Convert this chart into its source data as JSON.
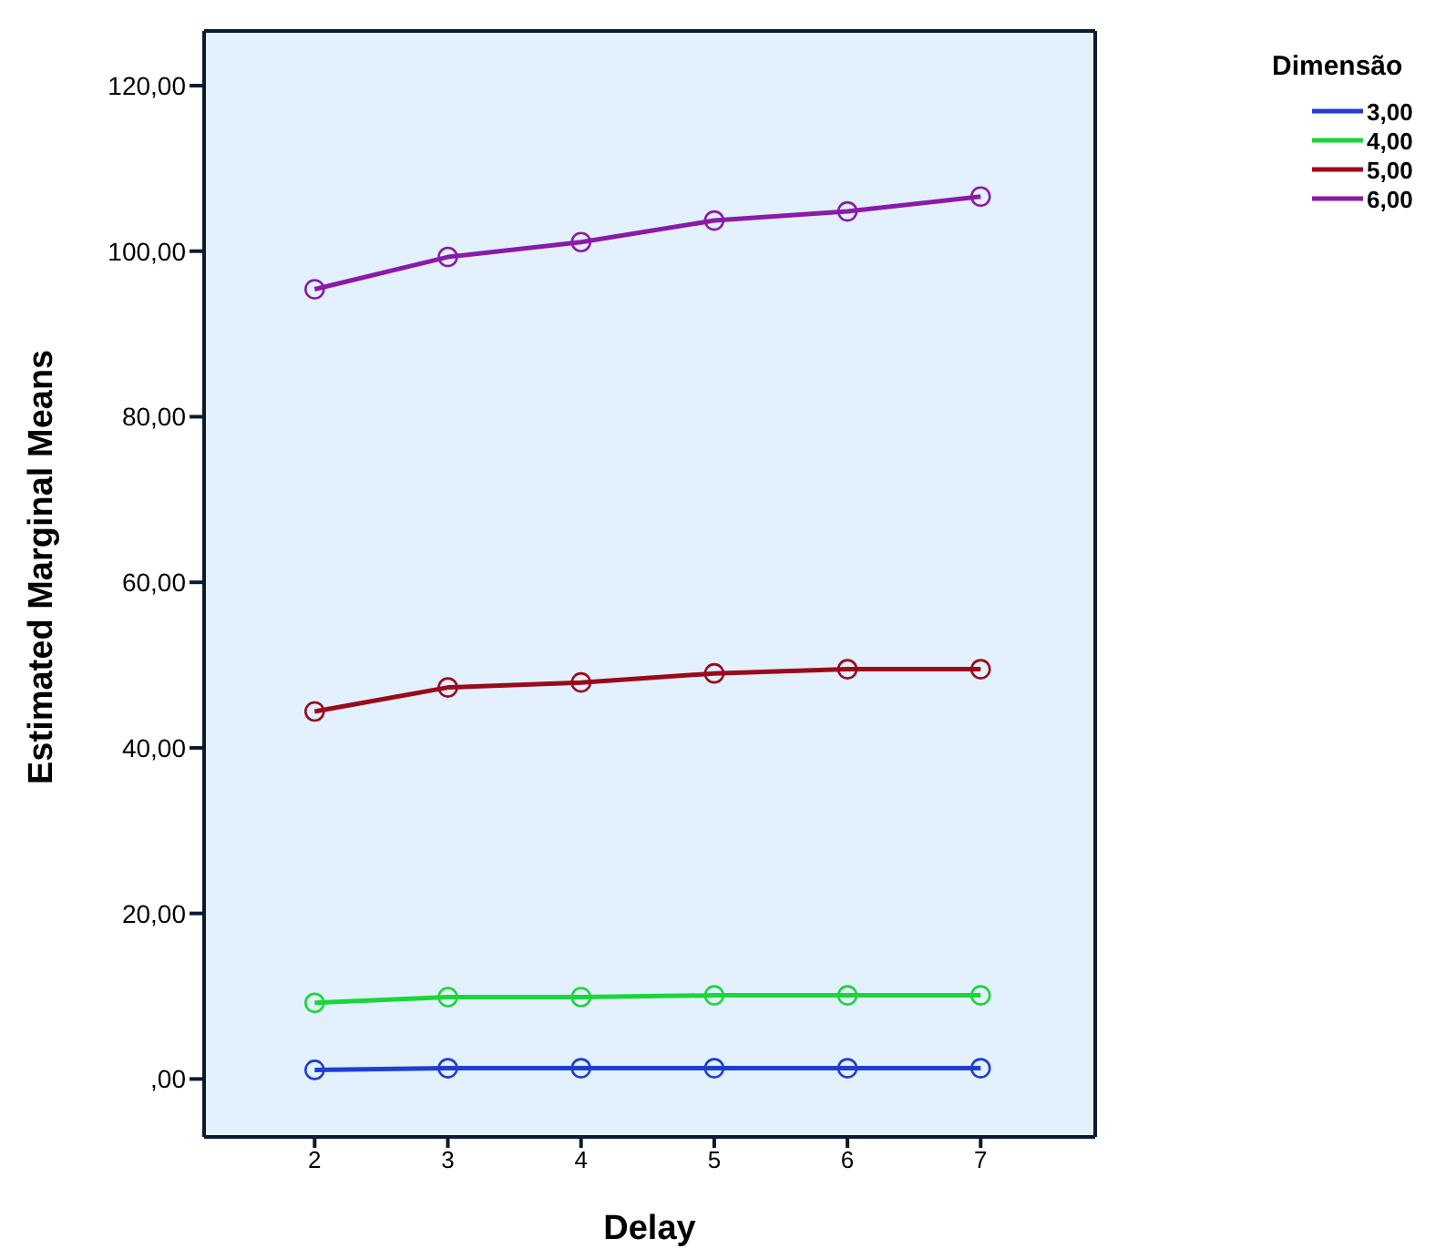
{
  "chart_data": {
    "type": "line",
    "xlabel": "Delay",
    "ylabel": "Estimated Marginal Means",
    "legend_title": "Dimensão",
    "x": [
      2,
      3,
      4,
      5,
      6,
      7
    ],
    "xlim": [
      1.17,
      7.86
    ],
    "xticks": [
      2,
      3,
      4,
      5,
      6,
      7
    ],
    "ylim": [
      -7,
      126.6
    ],
    "yticks": [
      {
        "value": 0,
        "label": ",00"
      },
      {
        "value": 20,
        "label": "20,00"
      },
      {
        "value": 40,
        "label": "40,00"
      },
      {
        "value": 60,
        "label": "60,00"
      },
      {
        "value": 80,
        "label": "80,00"
      },
      {
        "value": 100,
        "label": "100,00"
      },
      {
        "value": 120,
        "label": "120,00"
      }
    ],
    "grid": false,
    "legend": "top right",
    "marker": "circle",
    "line_style": "solid",
    "series": [
      {
        "name": "3,00",
        "color": "#1f3fd0",
        "values": [
          1.1,
          1.3,
          1.3,
          1.3,
          1.3,
          1.3
        ]
      },
      {
        "name": "4,00",
        "color": "#1ad63a",
        "values": [
          9.2,
          9.9,
          9.9,
          10.1,
          10.1,
          10.1
        ]
      },
      {
        "name": "5,00",
        "color": "#9b0a1a",
        "values": [
          44.4,
          47.3,
          47.9,
          49.0,
          49.5,
          49.5
        ]
      },
      {
        "name": "6,00",
        "color": "#8a1aa8",
        "values": [
          95.4,
          99.3,
          101.1,
          103.7,
          104.8,
          106.6
        ]
      }
    ]
  }
}
